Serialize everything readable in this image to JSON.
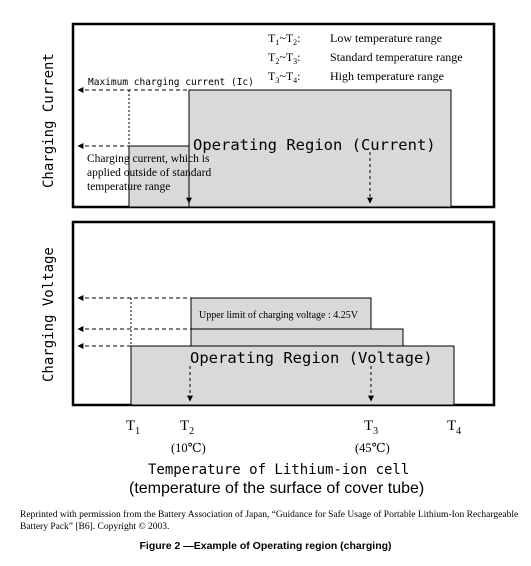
{
  "legend": [
    {
      "range": "T1~T2:",
      "label": "Low temperature range"
    },
    {
      "range": "T2~T3:",
      "label": "Standard temperature range"
    },
    {
      "range": "T3~T4:",
      "label": "High temperature range"
    }
  ],
  "current_panel": {
    "ylabel": "Charging Current",
    "max_current_label": "Maximum charging current (Ic)",
    "region_label": "Operating Region (Current)",
    "note_lines": [
      "Charging current, which is",
      "applied outside of standard",
      "temperature range"
    ]
  },
  "voltage_panel": {
    "ylabel": "Charging Voltage",
    "upper_limit_label": "Upper limit of charging voltage : 4.25V",
    "region_label": "Operating Region (Voltage)"
  },
  "ticks": {
    "t1": {
      "letter": "T",
      "sub": "1"
    },
    "t2": {
      "letter": "T",
      "sub": "2",
      "temp": "(10℃)"
    },
    "t3": {
      "letter": "T",
      "sub": "3",
      "temp": "(45℃)"
    },
    "t4": {
      "letter": "T",
      "sub": "4"
    }
  },
  "xlabel_line1": "Temperature of Lithium-ion cell",
  "xlabel_line2": "(temperature of the surface of cover tube)",
  "credit": "Reprinted with permission from the Battery Association of Japan, “Guidance for Safe Usage of Portable Lithium-Ion Rechargeable Battery Pack” [B6]. Copyright © 2003.",
  "caption": "Figure 2 —Example of Operating region (charging)"
}
